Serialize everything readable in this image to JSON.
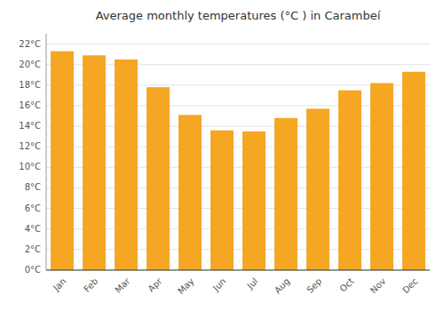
{
  "chart_data": {
    "type": "bar",
    "title": "Average monthly temperatures (°C ) in Carambeí",
    "categories": [
      "Jan",
      "Feb",
      "Mar",
      "Apr",
      "May",
      "Jun",
      "Jul",
      "Aug",
      "Sep",
      "Oct",
      "Nov",
      "Dec"
    ],
    "values": [
      21.3,
      20.9,
      20.5,
      17.8,
      15.1,
      13.6,
      13.5,
      14.8,
      15.7,
      17.5,
      18.2,
      19.3
    ],
    "color": "#F5A623",
    "ylim": [
      0,
      23
    ],
    "yticks": [
      {
        "value": 0,
        "label": "0°C"
      },
      {
        "value": 2,
        "label": "2°C"
      },
      {
        "value": 4,
        "label": "4°C"
      },
      {
        "value": 6,
        "label": "6°C"
      },
      {
        "value": 8,
        "label": "8°C"
      },
      {
        "value": 10,
        "label": "10°C"
      },
      {
        "value": 12,
        "label": "12°C"
      },
      {
        "value": 14,
        "label": "14°C"
      },
      {
        "value": 16,
        "label": "16°C"
      },
      {
        "value": 18,
        "label": "18°C"
      },
      {
        "value": 20,
        "label": "20°C"
      },
      {
        "value": 22,
        "label": "22°C"
      }
    ],
    "grid": true
  }
}
